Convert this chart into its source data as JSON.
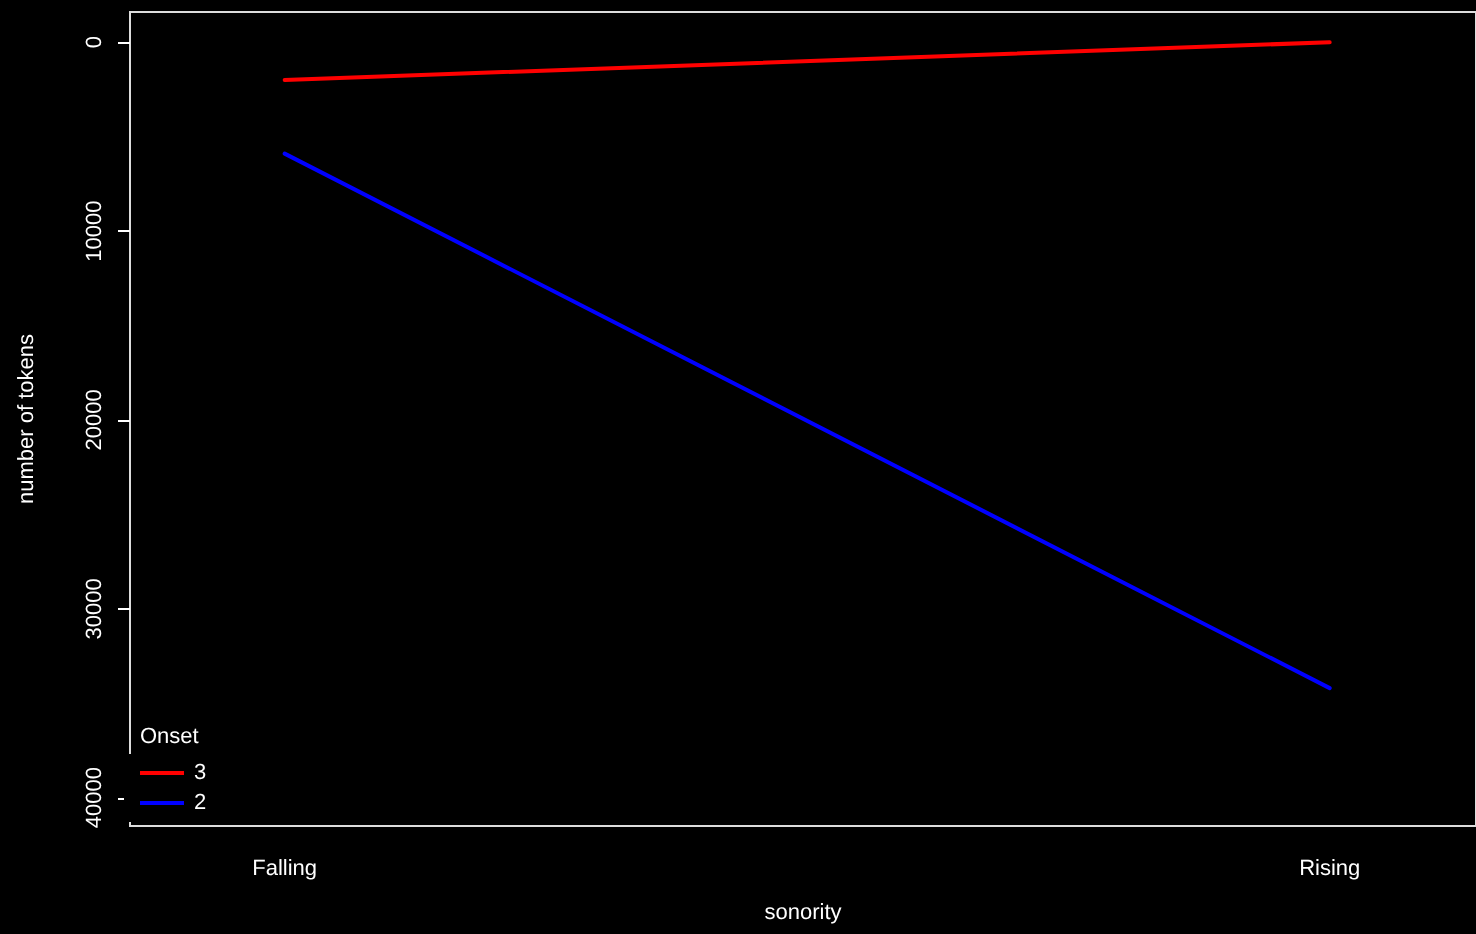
{
  "chart_data": {
    "type": "line",
    "xlabel": "sonority",
    "ylabel": "number of tokens",
    "legend_title": "Onset",
    "categories": [
      "Falling",
      "Rising"
    ],
    "series": [
      {
        "name": "3",
        "color": "#ff0000",
        "values": [
          2000,
          0
        ]
      },
      {
        "name": "2",
        "color": "#0000ff",
        "values": [
          5900,
          34200
        ]
      }
    ],
    "ylim": [
      41500,
      -1600
    ],
    "yticks": [
      0,
      10000,
      20000,
      30000,
      40000
    ],
    "grid": false,
    "legend": "bottom left",
    "marker": "none",
    "line_style": "solid"
  }
}
